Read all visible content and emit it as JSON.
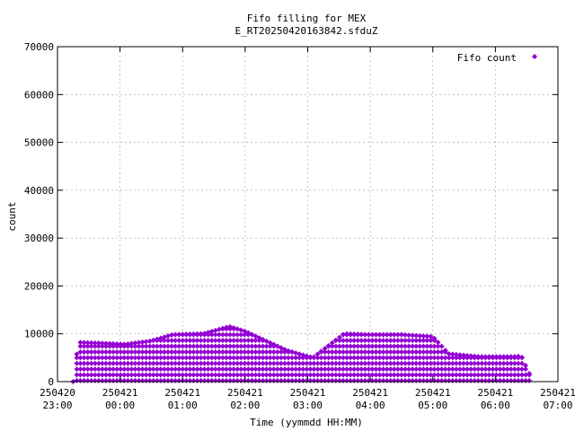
{
  "chart_data": {
    "type": "scatter",
    "title": "Fifo filling for MEX",
    "subtitle": "E_RT20250420163842.sfduZ",
    "xlabel": "Time (yymmdd HH:MM)",
    "ylabel": "count",
    "xlim": [
      "2025-04-20T23:00",
      "2025-04-21T07:00"
    ],
    "ylim": [
      0,
      70000
    ],
    "grid": true,
    "legend_position": "top-right",
    "x_ticks": [
      {
        "date": "250420",
        "time": "23:00"
      },
      {
        "date": "250421",
        "time": "00:00"
      },
      {
        "date": "250421",
        "time": "01:00"
      },
      {
        "date": "250421",
        "time": "02:00"
      },
      {
        "date": "250421",
        "time": "03:00"
      },
      {
        "date": "250421",
        "time": "04:00"
      },
      {
        "date": "250421",
        "time": "05:00"
      },
      {
        "date": "250421",
        "time": "06:00"
      },
      {
        "date": "250421",
        "time": "07:00"
      }
    ],
    "y_ticks": [
      "0",
      "10000",
      "20000",
      "30000",
      "40000",
      "50000",
      "60000",
      "70000"
    ],
    "series": [
      {
        "name": "Fifo count",
        "color": "#9400d3",
        "marker": "diamond",
        "data_range": [
          "2025-04-20T23:15",
          "2025-04-21T06:35"
        ],
        "envelope": [
          {
            "x": "2025-04-20T23:15",
            "y": 0
          },
          {
            "x": "2025-04-20T23:20",
            "y": 8200
          },
          {
            "x": "2025-04-20T23:45",
            "y": 8000
          },
          {
            "x": "2025-04-21T00:05",
            "y": 7800
          },
          {
            "x": "2025-04-21T00:30",
            "y": 8500
          },
          {
            "x": "2025-04-21T00:50",
            "y": 9800
          },
          {
            "x": "2025-04-21T01:20",
            "y": 10000
          },
          {
            "x": "2025-04-21T01:45",
            "y": 11500
          },
          {
            "x": "2025-04-21T02:00",
            "y": 10500
          },
          {
            "x": "2025-04-21T02:20",
            "y": 8500
          },
          {
            "x": "2025-04-21T02:40",
            "y": 6500
          },
          {
            "x": "2025-04-21T03:05",
            "y": 5000
          },
          {
            "x": "2025-04-21T03:20",
            "y": 7500
          },
          {
            "x": "2025-04-21T03:35",
            "y": 10000
          },
          {
            "x": "2025-04-21T04:00",
            "y": 9800
          },
          {
            "x": "2025-04-21T04:30",
            "y": 9800
          },
          {
            "x": "2025-04-21T05:00",
            "y": 9400
          },
          {
            "x": "2025-04-21T05:15",
            "y": 5800
          },
          {
            "x": "2025-04-21T05:45",
            "y": 5200
          },
          {
            "x": "2025-04-21T06:15",
            "y": 5200
          },
          {
            "x": "2025-04-21T06:25",
            "y": 5300
          },
          {
            "x": "2025-04-21T06:35",
            "y": 500
          }
        ]
      }
    ]
  }
}
